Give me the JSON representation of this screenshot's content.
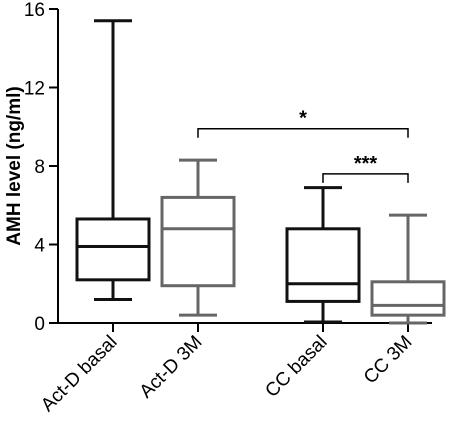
{
  "chart_data": {
    "type": "box",
    "title": "",
    "xlabel": "",
    "ylabel": "AMH level (ng/ml)",
    "ylim": [
      0,
      16
    ],
    "yticks": [
      0,
      4,
      8,
      12,
      16
    ],
    "grid": false,
    "categories": [
      "Act-D basal",
      "Act-D 3M",
      "CC basal",
      "CC 3M"
    ],
    "boxes": [
      {
        "label": "Act-D basal",
        "min": 1.2,
        "q1": 2.2,
        "median": 3.9,
        "q3": 5.3,
        "max": 15.4,
        "color": "#111111"
      },
      {
        "label": "Act-D 3M",
        "min": 0.4,
        "q1": 1.9,
        "median": 4.8,
        "q3": 6.4,
        "max": 8.3,
        "color": "#666666"
      },
      {
        "label": "CC basal",
        "min": 0.05,
        "q1": 1.1,
        "median": 2.0,
        "q3": 4.8,
        "max": 6.9,
        "color": "#111111"
      },
      {
        "label": "CC 3M",
        "min": 0.0,
        "q1": 0.4,
        "median": 0.9,
        "q3": 2.1,
        "max": 5.5,
        "color": "#666666"
      }
    ],
    "annotations": [
      {
        "text": "*",
        "from": "Act-D 3M",
        "to": "CC 3M",
        "y": 9.9
      },
      {
        "text": "***",
        "from": "CC basal",
        "to": "CC 3M",
        "y": 7.6
      }
    ]
  }
}
